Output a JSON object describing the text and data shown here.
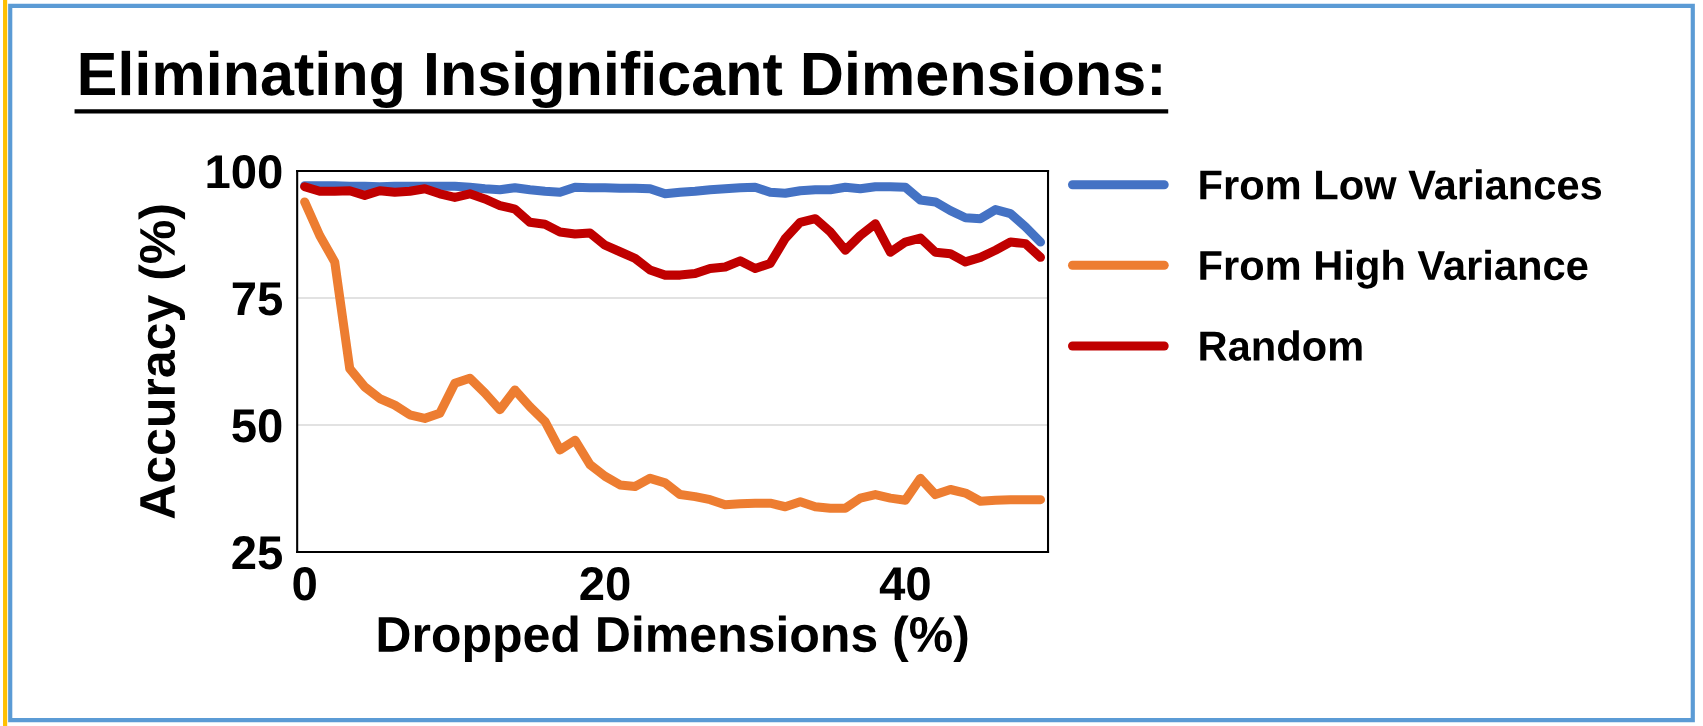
{
  "chart_data": {
    "type": "line",
    "title": "Eliminating Insignificant Dimensions:",
    "xlabel": "Dropped Dimensions (%)",
    "ylabel": "Accuracy (%)",
    "x": [
      0,
      1,
      2,
      3,
      4,
      5,
      6,
      7,
      8,
      9,
      10,
      11,
      12,
      13,
      14,
      15,
      16,
      17,
      18,
      19,
      20,
      21,
      22,
      23,
      24,
      25,
      26,
      27,
      28,
      29,
      30,
      31,
      32,
      33,
      34,
      35,
      36,
      37,
      38,
      39,
      40,
      41,
      42,
      43,
      44,
      45,
      46,
      47,
      48,
      49
    ],
    "series": [
      {
        "name": "From Low Variances",
        "color": "#4472c4",
        "values": [
          97.1,
          97.1,
          97.1,
          97.0,
          97.0,
          96.9,
          97.0,
          97.0,
          97.0,
          97.0,
          97.0,
          96.8,
          96.5,
          96.3,
          96.7,
          96.3,
          96.0,
          95.8,
          96.8,
          96.7,
          96.7,
          96.6,
          96.6,
          96.5,
          95.5,
          95.8,
          96.0,
          96.3,
          96.5,
          96.7,
          96.8,
          95.8,
          95.6,
          96.1,
          96.3,
          96.3,
          96.8,
          96.5,
          96.9,
          96.9,
          96.8,
          94.3,
          93.9,
          92.2,
          90.8,
          90.6,
          92.4,
          91.6,
          89.0,
          86.0
        ]
      },
      {
        "name": "From High Variance",
        "color": "#ed7d31",
        "values": [
          93.9,
          87.3,
          82.1,
          61.1,
          57.5,
          55.2,
          53.9,
          52.0,
          51.3,
          52.3,
          58.2,
          59.2,
          56.3,
          53.0,
          56.9,
          53.6,
          50.7,
          45.1,
          47.0,
          42.2,
          39.9,
          38.2,
          37.9,
          39.5,
          38.6,
          36.3,
          35.9,
          35.3,
          34.3,
          34.5,
          34.6,
          34.6,
          33.9,
          34.9,
          33.9,
          33.6,
          33.6,
          35.6,
          36.3,
          35.6,
          35.2,
          39.5,
          36.3,
          37.3,
          36.6,
          35.0,
          35.2,
          35.3,
          35.3,
          35.3
        ]
      },
      {
        "name": "Random",
        "color": "#c00000",
        "values": [
          96.9,
          96.0,
          96.0,
          96.1,
          95.2,
          96.1,
          95.8,
          96.0,
          96.5,
          95.5,
          94.8,
          95.5,
          94.5,
          93.2,
          92.5,
          89.9,
          89.5,
          88.0,
          87.6,
          87.8,
          85.4,
          84.1,
          82.8,
          80.5,
          79.5,
          79.5,
          79.8,
          80.8,
          81.1,
          82.3,
          80.8,
          81.8,
          86.7,
          89.9,
          90.6,
          88.0,
          84.4,
          87.3,
          89.6,
          84.0,
          86.0,
          86.8,
          84.0,
          83.7,
          82.1,
          83.0,
          84.4,
          86.0,
          85.7,
          83.0
        ]
      }
    ],
    "xlim": [
      -0.5,
      49.5
    ],
    "xticks": [
      0,
      20,
      40
    ],
    "ylim": [
      25,
      100
    ],
    "yticks": [
      25,
      50,
      75,
      100
    ],
    "grid": "y",
    "legend": "right",
    "marker": "none",
    "line_style": "solid"
  }
}
